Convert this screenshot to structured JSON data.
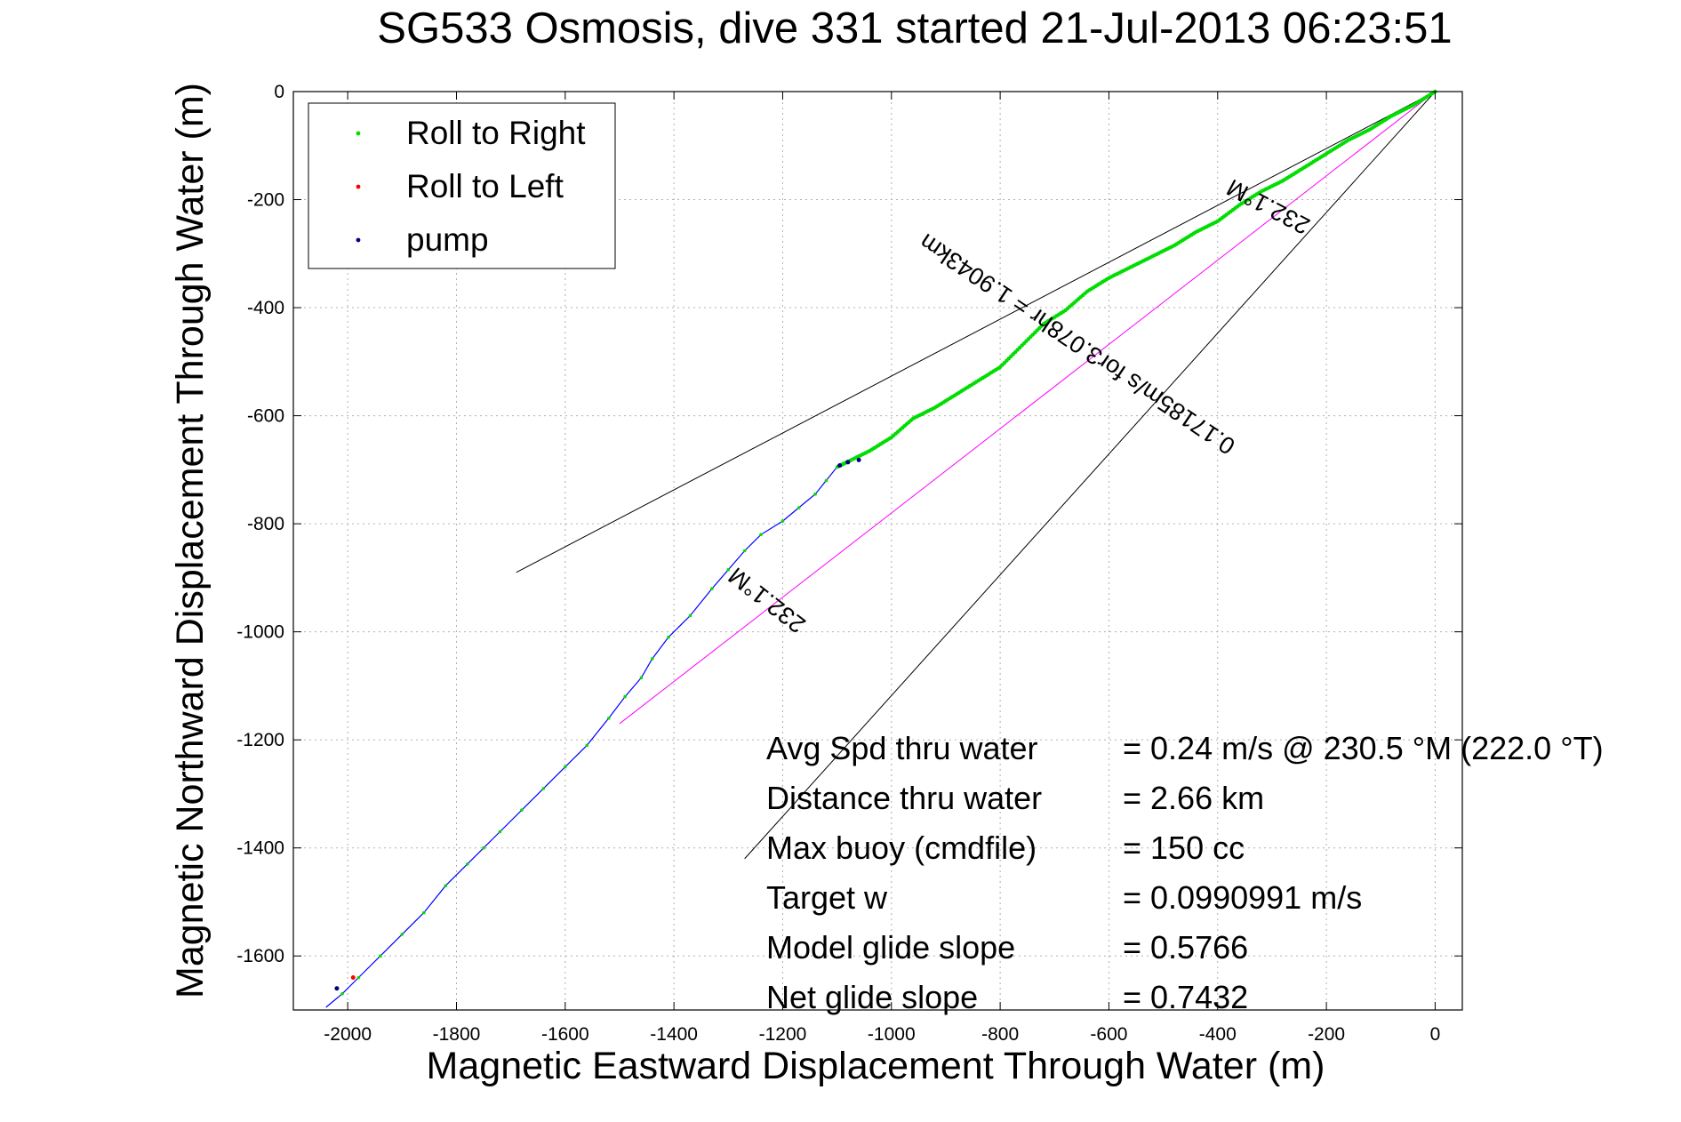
{
  "chart_data": {
    "type": "scatter",
    "title": "SG533 Osmosis, dive 331 started 21-Jul-2013 06:23:51",
    "xlabel": "Magnetic Eastward Displacement Through Water (m)",
    "ylabel": "Magnetic Northward Displacement Through Water (m)",
    "xlim": [
      -2100,
      50
    ],
    "ylim": [
      -1700,
      0
    ],
    "x_ticks": [
      -2000,
      -1800,
      -1600,
      -1400,
      -1200,
      -1000,
      -800,
      -600,
      -400,
      -200,
      0
    ],
    "y_ticks": [
      0,
      -200,
      -400,
      -600,
      -800,
      -1000,
      -1200,
      -1400,
      -1600
    ],
    "grid": true,
    "legend_position": "top-left",
    "legend": [
      {
        "label": "Roll to Right",
        "color": "#00dd00"
      },
      {
        "label": "Roll to Left",
        "color": "#ff0000"
      },
      {
        "label": "pump",
        "color": "#000080"
      }
    ],
    "track_color": "#0000ff",
    "track": [
      [
        0,
        0
      ],
      [
        -40,
        -25
      ],
      [
        -80,
        -45
      ],
      [
        -120,
        -70
      ],
      [
        -160,
        -90
      ],
      [
        -200,
        -115
      ],
      [
        -240,
        -140
      ],
      [
        -280,
        -165
      ],
      [
        -320,
        -185
      ],
      [
        -360,
        -210
      ],
      [
        -400,
        -240
      ],
      [
        -440,
        -260
      ],
      [
        -480,
        -285
      ],
      [
        -520,
        -305
      ],
      [
        -560,
        -325
      ],
      [
        -600,
        -345
      ],
      [
        -640,
        -370
      ],
      [
        -680,
        -405
      ],
      [
        -720,
        -430
      ],
      [
        -760,
        -470
      ],
      [
        -800,
        -510
      ],
      [
        -840,
        -535
      ],
      [
        -880,
        -560
      ],
      [
        -920,
        -585
      ],
      [
        -960,
        -605
      ],
      [
        -1000,
        -640
      ],
      [
        -1040,
        -665
      ],
      [
        -1080,
        -685
      ],
      [
        -1100,
        -695
      ],
      [
        -1120,
        -720
      ],
      [
        -1140,
        -745
      ],
      [
        -1170,
        -770
      ],
      [
        -1200,
        -795
      ],
      [
        -1240,
        -820
      ],
      [
        -1270,
        -850
      ],
      [
        -1300,
        -885
      ],
      [
        -1330,
        -920
      ],
      [
        -1370,
        -970
      ],
      [
        -1410,
        -1010
      ],
      [
        -1440,
        -1050
      ],
      [
        -1460,
        -1085
      ],
      [
        -1490,
        -1120
      ],
      [
        -1520,
        -1160
      ],
      [
        -1560,
        -1210
      ],
      [
        -1600,
        -1250
      ],
      [
        -1640,
        -1290
      ],
      [
        -1680,
        -1330
      ],
      [
        -1720,
        -1370
      ],
      [
        -1750,
        -1400
      ],
      [
        -1780,
        -1430
      ],
      [
        -1820,
        -1470
      ],
      [
        -1860,
        -1520
      ],
      [
        -1900,
        -1560
      ],
      [
        -1940,
        -1600
      ],
      [
        -1980,
        -1640
      ],
      [
        -2010,
        -1670
      ],
      [
        -2040,
        -1695
      ]
    ],
    "green_markers_end_index": 28,
    "pump_points": [
      [
        -1060,
        -682
      ],
      [
        -1080,
        -686
      ],
      [
        -1095,
        -692
      ],
      [
        -2020,
        -1660
      ]
    ],
    "roll_left_points": [
      [
        -1990,
        -1640
      ]
    ],
    "reference_lines": [
      {
        "name": "upper-bound-line",
        "color": "#000000",
        "x": [
          0,
          -1690
        ],
        "y": [
          0,
          -890
        ]
      },
      {
        "name": "lower-bound-line",
        "color": "#000000",
        "x": [
          0,
          -1270
        ],
        "y": [
          0,
          -1420
        ]
      },
      {
        "name": "current-vector-line",
        "color": "#ff00ff",
        "x": [
          0,
          -1500
        ],
        "y": [
          0,
          -1170
        ]
      }
    ],
    "annotations": [
      {
        "text": "232.1°M",
        "x": -300,
        "y": -200,
        "rotation": 208
      },
      {
        "text": "0.17185m/s for3.078hr = 1.9043km",
        "x": -650,
        "y": -455,
        "rotation": 214
      },
      {
        "text": "232.1°M",
        "x": -1220,
        "y": -930,
        "rotation": 218
      }
    ],
    "stats": [
      {
        "label": "Avg Spd thru water",
        "value": "=  0.24 m/s @ 230.5 °M (222.0 °T)"
      },
      {
        "label": "Distance thru water",
        "value": "=  2.66 km"
      },
      {
        "label": "Max buoy (cmdfile)",
        "value": "= 150 cc"
      },
      {
        "label": "Target w",
        "value": "= 0.0990991 m/s"
      },
      {
        "label": "Model glide slope",
        "value": "= 0.5766"
      },
      {
        "label": "Net glide slope",
        "value": "= 0.7432"
      }
    ]
  }
}
